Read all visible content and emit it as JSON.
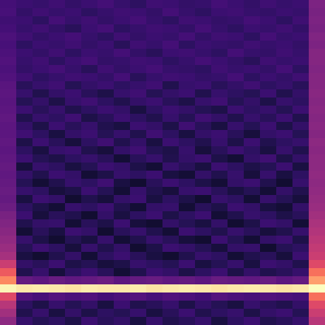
{
  "chart_data": {
    "type": "heatmap",
    "tick_labels": false,
    "zlim": [
      0,
      1
    ],
    "cells": [
      [
        0.22,
        0.2,
        0.19,
        0.21,
        0.18,
        0.2,
        0.22,
        0.19,
        0.17,
        0.21,
        0.2,
        0.18,
        0.19,
        0.22,
        0.2,
        0.18,
        0.21,
        0.19,
        0.2,
        0.36
      ],
      [
        0.23,
        0.18,
        0.21,
        0.19,
        0.2,
        0.17,
        0.19,
        0.21,
        0.2,
        0.18,
        0.22,
        0.19,
        0.17,
        0.2,
        0.21,
        0.19,
        0.18,
        0.2,
        0.19,
        0.35
      ],
      [
        0.21,
        0.2,
        0.17,
        0.22,
        0.19,
        0.21,
        0.18,
        0.2,
        0.22,
        0.19,
        0.17,
        0.21,
        0.2,
        0.18,
        0.19,
        0.22,
        0.2,
        0.17,
        0.21,
        0.36
      ],
      [
        0.22,
        0.19,
        0.21,
        0.18,
        0.16,
        0.2,
        0.22,
        0.17,
        0.19,
        0.21,
        0.2,
        0.18,
        0.22,
        0.19,
        0.17,
        0.2,
        0.19,
        0.21,
        0.18,
        0.35
      ],
      [
        0.24,
        0.21,
        0.18,
        0.2,
        0.22,
        0.19,
        0.17,
        0.21,
        0.18,
        0.2,
        0.19,
        0.22,
        0.18,
        0.21,
        0.2,
        0.17,
        0.22,
        0.19,
        0.2,
        0.37
      ],
      [
        0.23,
        0.17,
        0.2,
        0.19,
        0.21,
        0.18,
        0.2,
        0.16,
        0.21,
        0.19,
        0.22,
        0.17,
        0.2,
        0.19,
        0.18,
        0.21,
        0.19,
        0.2,
        0.18,
        0.36
      ],
      [
        0.24,
        0.2,
        0.18,
        0.21,
        0.17,
        0.2,
        0.19,
        0.22,
        0.18,
        0.16,
        0.2,
        0.21,
        0.19,
        0.17,
        0.22,
        0.19,
        0.18,
        0.21,
        0.19,
        0.38
      ],
      [
        0.25,
        0.19,
        0.21,
        0.17,
        0.2,
        0.22,
        0.18,
        0.19,
        0.21,
        0.2,
        0.17,
        0.19,
        0.22,
        0.2,
        0.18,
        0.16,
        0.21,
        0.19,
        0.2,
        0.38
      ],
      [
        0.24,
        0.18,
        0.2,
        0.22,
        0.19,
        0.16,
        0.21,
        0.18,
        0.2,
        0.22,
        0.19,
        0.18,
        0.17,
        0.21,
        0.19,
        0.2,
        0.18,
        0.22,
        0.17,
        0.37
      ],
      [
        0.25,
        0.21,
        0.17,
        0.19,
        0.21,
        0.2,
        0.18,
        0.22,
        0.16,
        0.19,
        0.21,
        0.2,
        0.18,
        0.19,
        0.22,
        0.17,
        0.2,
        0.18,
        0.21,
        0.38
      ],
      [
        0.27,
        0.16,
        0.19,
        0.21,
        0.15,
        0.18,
        0.2,
        0.17,
        0.19,
        0.21,
        0.14,
        0.19,
        0.2,
        0.16,
        0.18,
        0.21,
        0.17,
        0.19,
        0.16,
        0.38
      ],
      [
        0.28,
        0.19,
        0.14,
        0.18,
        0.2,
        0.16,
        0.13,
        0.19,
        0.21,
        0.15,
        0.18,
        0.2,
        0.14,
        0.19,
        0.17,
        0.15,
        0.2,
        0.14,
        0.18,
        0.39
      ],
      [
        0.27,
        0.15,
        0.18,
        0.13,
        0.19,
        0.21,
        0.17,
        0.14,
        0.18,
        0.2,
        0.16,
        0.13,
        0.19,
        0.21,
        0.15,
        0.18,
        0.13,
        0.19,
        0.17,
        0.38
      ],
      [
        0.28,
        0.2,
        0.16,
        0.19,
        0.14,
        0.17,
        0.2,
        0.18,
        0.12,
        0.17,
        0.2,
        0.18,
        0.15,
        0.13,
        0.2,
        0.17,
        0.19,
        0.15,
        0.2,
        0.39
      ],
      [
        0.29,
        0.14,
        0.19,
        0.17,
        0.21,
        0.13,
        0.16,
        0.2,
        0.17,
        0.14,
        0.19,
        0.15,
        0.21,
        0.18,
        0.14,
        0.19,
        0.16,
        0.2,
        0.14,
        0.38
      ],
      [
        0.28,
        0.18,
        0.13,
        0.2,
        0.16,
        0.19,
        0.14,
        0.12,
        0.2,
        0.18,
        0.13,
        0.21,
        0.16,
        0.12,
        0.19,
        0.15,
        0.2,
        0.13,
        0.18,
        0.39
      ],
      [
        0.28,
        0.21,
        0.17,
        0.12,
        0.18,
        0.2,
        0.15,
        0.19,
        0.14,
        0.21,
        0.17,
        0.12,
        0.18,
        0.2,
        0.16,
        0.11,
        0.18,
        0.2,
        0.15,
        0.38
      ],
      [
        0.29,
        0.13,
        0.2,
        0.16,
        0.11,
        0.17,
        0.21,
        0.14,
        0.18,
        0.12,
        0.2,
        0.17,
        0.14,
        0.19,
        0.13,
        0.2,
        0.14,
        0.17,
        0.19,
        0.4
      ],
      [
        0.28,
        0.17,
        0.12,
        0.19,
        0.2,
        0.14,
        0.11,
        0.18,
        0.21,
        0.15,
        0.13,
        0.19,
        0.11,
        0.16,
        0.2,
        0.17,
        0.12,
        0.19,
        0.14,
        0.39
      ],
      [
        0.29,
        0.2,
        0.15,
        0.13,
        0.17,
        0.19,
        0.16,
        0.1,
        0.16,
        0.19,
        0.14,
        0.18,
        0.2,
        0.13,
        0.1,
        0.18,
        0.21,
        0.13,
        0.18,
        0.4
      ],
      [
        0.3,
        0.11,
        0.19,
        0.17,
        0.12,
        0.15,
        0.2,
        0.18,
        0.13,
        0.1,
        0.19,
        0.16,
        0.12,
        0.2,
        0.17,
        0.13,
        0.15,
        0.2,
        0.12,
        0.4
      ],
      [
        0.29,
        0.18,
        0.14,
        0.2,
        0.18,
        0.1,
        0.13,
        0.19,
        0.17,
        0.2,
        0.12,
        0.1,
        0.18,
        0.14,
        0.19,
        0.11,
        0.19,
        0.12,
        0.17,
        0.41
      ],
      [
        0.3,
        0.15,
        0.1,
        0.14,
        0.19,
        0.17,
        0.21,
        0.12,
        0.09,
        0.16,
        0.2,
        0.17,
        0.13,
        0.1,
        0.18,
        0.2,
        0.14,
        0.09,
        0.19,
        0.4
      ],
      [
        0.31,
        0.19,
        0.17,
        0.11,
        0.13,
        0.2,
        0.15,
        0.1,
        0.19,
        0.14,
        0.11,
        0.19,
        0.2,
        0.16,
        0.12,
        0.15,
        0.1,
        0.18,
        0.14,
        0.41
      ],
      [
        0.3,
        0.12,
        0.2,
        0.18,
        0.09,
        0.14,
        0.11,
        0.18,
        0.2,
        0.12,
        0.17,
        0.13,
        0.09,
        0.19,
        0.17,
        0.1,
        0.19,
        0.15,
        0.11,
        0.42
      ],
      [
        0.32,
        0.17,
        0.13,
        0.1,
        0.19,
        0.17,
        0.2,
        0.14,
        0.1,
        0.18,
        0.19,
        0.1,
        0.16,
        0.13,
        0.2,
        0.18,
        0.12,
        0.1,
        0.18,
        0.43
      ],
      [
        0.35,
        0.2,
        0.11,
        0.16,
        0.14,
        0.09,
        0.18,
        0.12,
        0.17,
        0.2,
        0.13,
        0.17,
        0.2,
        0.1,
        0.14,
        0.19,
        0.17,
        0.13,
        0.16,
        0.45
      ],
      [
        0.37,
        0.14,
        0.18,
        0.19,
        0.1,
        0.16,
        0.13,
        0.2,
        0.11,
        0.09,
        0.18,
        0.15,
        0.12,
        0.18,
        0.09,
        0.13,
        0.2,
        0.18,
        0.1,
        0.47
      ],
      [
        0.39,
        0.1,
        0.16,
        0.12,
        0.2,
        0.18,
        0.09,
        0.16,
        0.19,
        0.14,
        0.1,
        0.2,
        0.17,
        0.14,
        0.19,
        0.16,
        0.11,
        0.14,
        0.19,
        0.49
      ],
      [
        0.41,
        0.19,
        0.13,
        0.09,
        0.15,
        0.12,
        0.19,
        0.1,
        0.14,
        0.19,
        0.16,
        0.11,
        0.09,
        0.2,
        0.15,
        0.1,
        0.18,
        0.2,
        0.13,
        0.51
      ],
      [
        0.43,
        0.15,
        0.2,
        0.17,
        0.11,
        0.19,
        0.14,
        0.18,
        0.09,
        0.13,
        0.2,
        0.18,
        0.15,
        0.11,
        0.18,
        0.19,
        0.09,
        0.15,
        0.17,
        0.53
      ],
      [
        0.46,
        0.12,
        0.09,
        0.14,
        0.18,
        0.1,
        0.17,
        0.2,
        0.16,
        0.12,
        0.09,
        0.14,
        0.19,
        0.17,
        0.1,
        0.14,
        0.16,
        0.11,
        0.2,
        0.55
      ],
      [
        0.55,
        0.18,
        0.16,
        0.2,
        0.13,
        0.15,
        0.11,
        0.13,
        0.19,
        0.17,
        0.15,
        0.2,
        0.12,
        0.15,
        0.19,
        0.12,
        0.2,
        0.18,
        0.14,
        0.6
      ],
      [
        0.65,
        0.14,
        0.19,
        0.11,
        0.17,
        0.2,
        0.16,
        0.1,
        0.14,
        0.2,
        0.18,
        0.13,
        0.17,
        0.2,
        0.13,
        0.18,
        0.14,
        0.16,
        0.19,
        0.7
      ],
      [
        0.75,
        0.3,
        0.28,
        0.31,
        0.29,
        0.3,
        0.32,
        0.28,
        0.3,
        0.31,
        0.29,
        0.3,
        0.28,
        0.31,
        0.3,
        0.29,
        0.31,
        0.28,
        0.3,
        0.8
      ],
      [
        0.98,
        0.95,
        0.96,
        0.95,
        0.94,
        0.96,
        0.95,
        0.95,
        0.96,
        0.94,
        0.95,
        0.96,
        0.95,
        0.94,
        0.95,
        0.96,
        0.95,
        0.94,
        0.95,
        1.0
      ],
      [
        0.6,
        0.25,
        0.23,
        0.26,
        0.24,
        0.25,
        0.22,
        0.24,
        0.26,
        0.23,
        0.25,
        0.24,
        0.22,
        0.26,
        0.24,
        0.23,
        0.25,
        0.24,
        0.23,
        0.7
      ],
      [
        0.5,
        0.17,
        0.13,
        0.19,
        0.15,
        0.18,
        0.12,
        0.2,
        0.14,
        0.16,
        0.19,
        0.13,
        0.18,
        0.15,
        0.12,
        0.19,
        0.16,
        0.14,
        0.18,
        0.6
      ],
      [
        0.45,
        0.14,
        0.19,
        0.12,
        0.18,
        0.13,
        0.17,
        0.15,
        0.19,
        0.12,
        0.16,
        0.2,
        0.14,
        0.17,
        0.19,
        0.13,
        0.18,
        0.2,
        0.15,
        0.55
      ],
      [
        0.4,
        0.19,
        0.15,
        0.17,
        0.13,
        0.2,
        0.16,
        0.18,
        0.12,
        0.19,
        0.14,
        0.16,
        0.19,
        0.12,
        0.17,
        0.2,
        0.14,
        0.16,
        0.19,
        0.5
      ]
    ]
  }
}
